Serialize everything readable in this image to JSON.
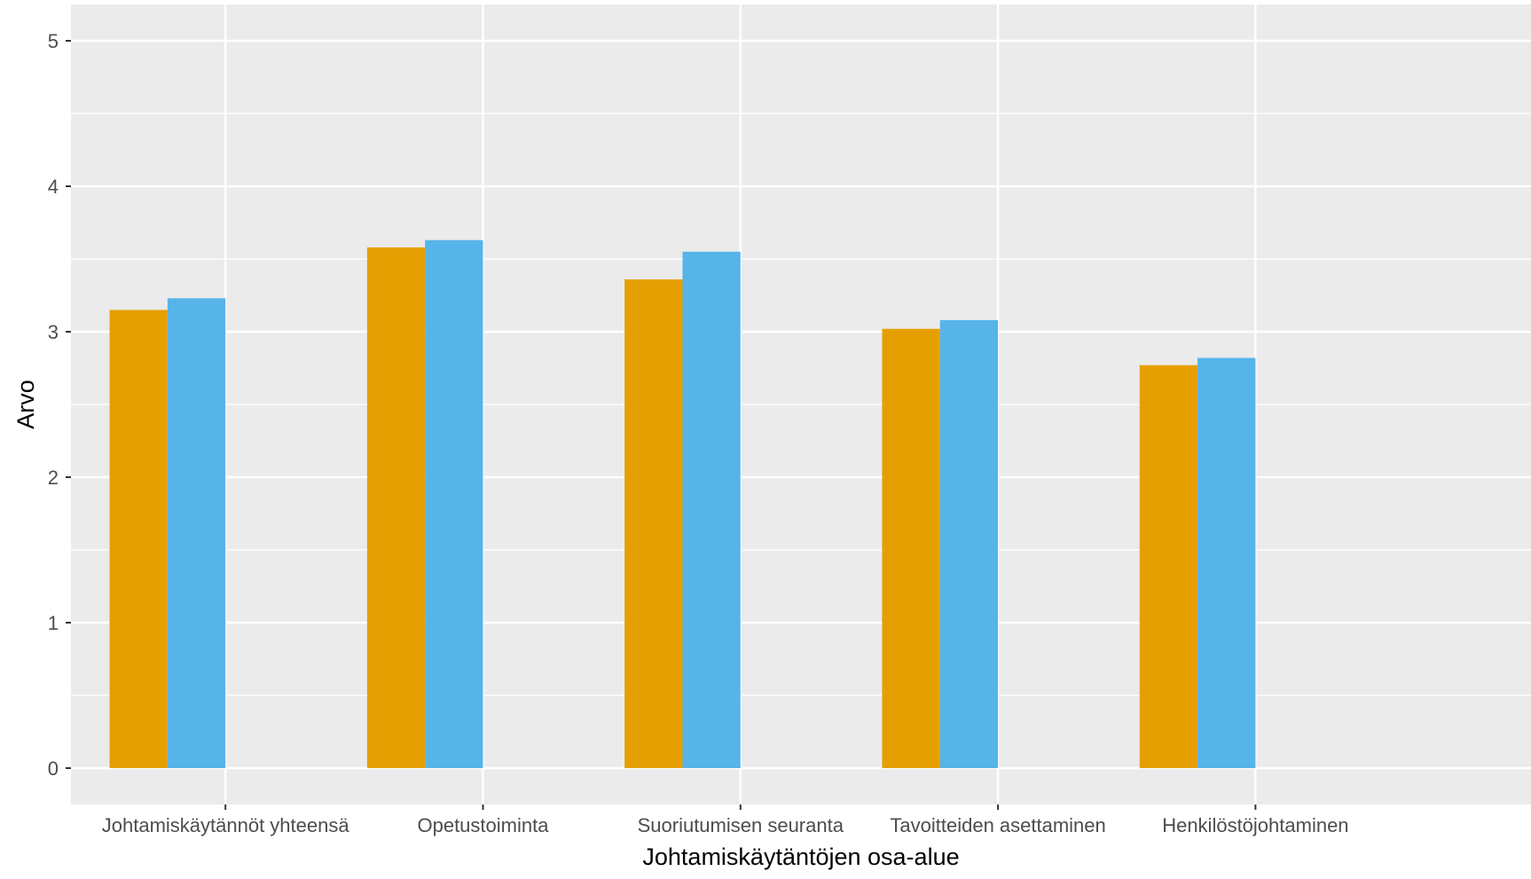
{
  "chart_data": {
    "type": "bar",
    "title": "",
    "xlabel": "Johtamiskäytäntöjen osa-alue",
    "ylabel": "Arvo",
    "ylim": [
      -0.25,
      5.25
    ],
    "yticks": [
      0,
      1,
      2,
      3,
      4,
      5
    ],
    "grid": true,
    "legend": "none",
    "categories": [
      "Johtamiskäytännöt yhteensä",
      "Opetustoiminta",
      "Suoriutumisen seuranta",
      "Tavoitteiden asettaminen",
      "Henkilöstöjohtaminen"
    ],
    "series": [
      {
        "color": "#E69F00",
        "values": [
          3.15,
          3.58,
          3.36,
          3.02,
          2.77
        ]
      },
      {
        "color": "#56B4E9",
        "values": [
          3.23,
          3.63,
          3.55,
          3.08,
          2.82
        ]
      }
    ],
    "colors": {
      "panel": "#EBEBEB",
      "grid": "#FFFFFF",
      "tick_text": "#4D4D4D"
    }
  }
}
